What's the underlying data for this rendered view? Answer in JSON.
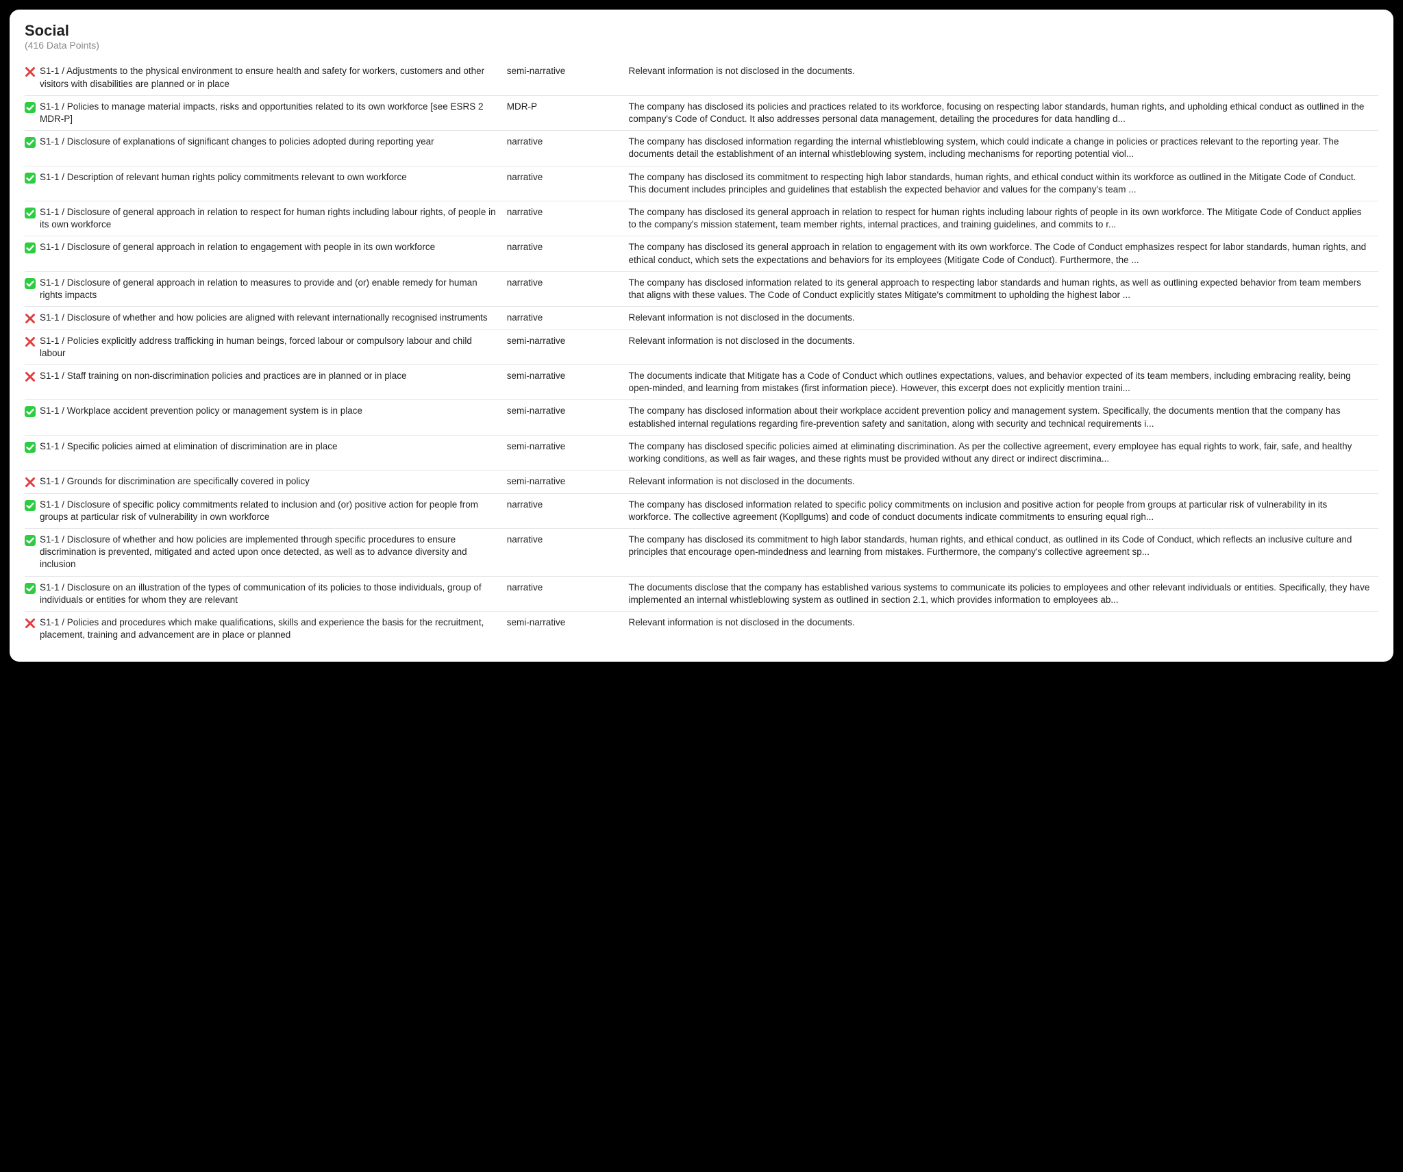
{
  "header": {
    "title": "Social",
    "subtitle": "(416 Data Points)"
  },
  "colors": {
    "check_bg": "#2ecc40",
    "check_fg": "#ffffff",
    "cross": "#e23b3b",
    "row_border": "#e7e7e7",
    "text": "#222222",
    "subtitle": "#8a8a8a",
    "panel_bg": "#ffffff",
    "page_bg": "#000000"
  },
  "rows": [
    {
      "status": "fail",
      "label": "S1-1 / Adjustments to the physical environment to ensure health and safety for workers, customers and other visitors with disabilities are planned or in place",
      "type": "semi-narrative",
      "desc": "Relevant information is not disclosed in the documents."
    },
    {
      "status": "pass",
      "label": "S1-1 / Policies to manage material impacts, risks and opportunities related to its own workforce [see ESRS 2 MDR-P]",
      "type": "MDR-P",
      "desc": "The company has disclosed its policies and practices related to its workforce, focusing on respecting labor standards, human rights, and upholding ethical conduct as outlined in the company's Code of Conduct. It also addresses personal data management, detailing the procedures for data handling d..."
    },
    {
      "status": "pass",
      "label": "S1-1 / Disclosure of explanations of significant changes to policies adopted during reporting year",
      "type": "narrative",
      "desc": "The company has disclosed information regarding the internal whistleblowing system, which could indicate a change in policies or practices relevant to the reporting year. The documents detail the establishment of an internal whistleblowing system, including mechanisms for reporting potential viol..."
    },
    {
      "status": "pass",
      "label": "S1-1 / Description of relevant human rights policy commitments relevant to own workforce",
      "type": "narrative",
      "desc": "The company has disclosed its commitment to respecting high labor standards, human rights, and ethical conduct within its workforce as outlined in the Mitigate Code of Conduct. This document includes principles and guidelines that establish the expected behavior and values for the company's team ..."
    },
    {
      "status": "pass",
      "label": "S1-1 / Disclosure of general approach in relation to respect for human rights including labour rights, of people in its own workforce",
      "type": "narrative",
      "desc": "The company has disclosed its general approach in relation to respect for human rights including labour rights of people in its own workforce. The Mitigate Code of Conduct applies to the company's mission statement, team member rights, internal practices, and training guidelines, and commits to r..."
    },
    {
      "status": "pass",
      "label": "S1-1 / Disclosure of general approach in relation to engagement with people in its own workforce",
      "type": "narrative",
      "desc": "The company has disclosed its general approach in relation to engagement with its own workforce. The Code of Conduct emphasizes respect for labor standards, human rights, and ethical conduct, which sets the expectations and behaviors for its employees (Mitigate Code of Conduct). Furthermore, the ..."
    },
    {
      "status": "pass",
      "label": "S1-1 / Disclosure of general approach in relation to measures to provide and (or) enable remedy for human rights impacts",
      "type": "narrative",
      "desc": "The company has disclosed information related to its general approach to respecting labor standards and human rights, as well as outlining expected behavior from team members that aligns with these values. The Code of Conduct explicitly states Mitigate's commitment to upholding the highest labor ..."
    },
    {
      "status": "fail",
      "label": "S1-1 / Disclosure of whether and how policies are aligned with relevant internationally recognised instruments",
      "type": "narrative",
      "desc": "Relevant information is not disclosed in the documents."
    },
    {
      "status": "fail",
      "label": "S1-1 / Policies explicitly address trafficking in human beings, forced labour or compulsory labour and child labour",
      "type": "semi-narrative",
      "desc": "Relevant information is not disclosed in the documents."
    },
    {
      "status": "fail",
      "label": "S1-1 / Staff training on non-discrimination policies and practices are in planned or in place",
      "type": "semi-narrative",
      "desc": "The documents indicate that Mitigate has a Code of Conduct which outlines expectations, values, and behavior expected of its team members, including embracing reality, being open-minded, and learning from mistakes (first information piece). However, this excerpt does not explicitly mention traini..."
    },
    {
      "status": "pass",
      "label": "S1-1 / Workplace accident prevention policy or management system is in place",
      "type": "semi-narrative",
      "desc": "The company has disclosed information about their workplace accident prevention policy and management system. Specifically, the documents mention that the company has established internal regulations regarding fire-prevention safety and sanitation, along with security and technical requirements i..."
    },
    {
      "status": "pass",
      "label": "S1-1 / Specific policies aimed at elimination of discrimination are in place",
      "type": "semi-narrative",
      "desc": "The company has disclosed specific policies aimed at eliminating discrimination. As per the collective agreement, every employee has equal rights to work, fair, safe, and healthy working conditions, as well as fair wages, and these rights must be provided without any direct or indirect discrimina..."
    },
    {
      "status": "fail",
      "label": "S1-1 / Grounds for discrimination are specifically covered in policy",
      "type": "semi-narrative",
      "desc": "Relevant information is not disclosed in the documents."
    },
    {
      "status": "pass",
      "label": "S1-1 / Disclosure of specific policy commitments related to inclusion and (or) positive action for people from groups at particular risk of vulnerability in own workforce",
      "type": "narrative",
      "desc": "The company has disclosed information related to specific policy commitments on inclusion and positive action for people from groups at particular risk of vulnerability in its workforce. The collective agreement (Kopllgums) and code of conduct documents indicate commitments to ensuring equal righ..."
    },
    {
      "status": "pass",
      "label": "S1-1 / Disclosure of whether and how policies are implemented through specific procedures to ensure discrimination is prevented, mitigated and acted upon once detected, as well as to advance diversity and inclusion",
      "type": "narrative",
      "desc": "The company has disclosed its commitment to high labor standards, human rights, and ethical conduct, as outlined in its Code of Conduct, which reflects an inclusive culture and principles that encourage open-mindedness and learning from mistakes. Furthermore, the company's collective agreement sp..."
    },
    {
      "status": "pass",
      "label": "S1-1 / Disclosure on an illustration of the types of communication of its policies to those individuals, group of individuals or entities for whom they are relevant",
      "type": "narrative",
      "desc": "The documents disclose that the company has established various systems to communicate its policies to employees and other relevant individuals or entities. Specifically, they have implemented an internal whistleblowing system as outlined in section 2.1, which provides information to employees ab..."
    },
    {
      "status": "fail",
      "label": "S1-1 / Policies and procedures which make qualifications, skills and experience the basis for the recruitment, placement, training and advancement are in place or planned",
      "type": "semi-narrative",
      "desc": "Relevant information is not disclosed in the documents."
    }
  ]
}
